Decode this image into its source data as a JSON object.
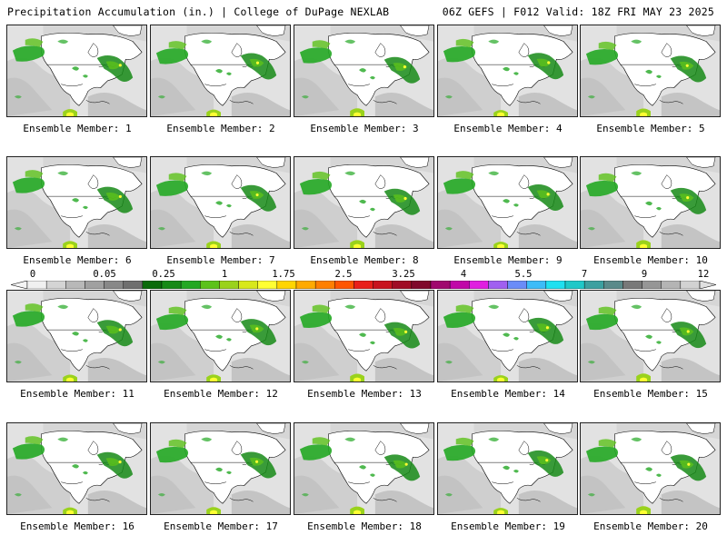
{
  "header": {
    "left_title": "Precipitation Accumulation (in.) | College of DuPage NEXLAB",
    "right_title": "06Z GEFS | F012 Valid: 18Z FRI MAY 23 2025"
  },
  "colorbar": {
    "tick_labels": [
      "0",
      "0.05",
      "0.25",
      "1",
      "1.75",
      "2.5",
      "3.25",
      "4",
      "5.5",
      "7",
      "9",
      "12"
    ],
    "colors": [
      "#f0f0f0",
      "#d4d4d4",
      "#b8b8b8",
      "#a0a0a0",
      "#888888",
      "#6f6f6f",
      "#0b6b0b",
      "#168a16",
      "#23a823",
      "#5cc21a",
      "#9ad21c",
      "#d8e81c",
      "#ffff33",
      "#ffd500",
      "#ffaa00",
      "#ff7f00",
      "#ff5500",
      "#e8201a",
      "#c8141e",
      "#a00c24",
      "#80082a",
      "#a0086e",
      "#c008a8",
      "#e020e0",
      "#a060f0",
      "#6a8cf8",
      "#3cbcf8",
      "#20e0f0",
      "#20c8c8",
      "#3ca0a0",
      "#5a8a8a",
      "#787878",
      "#969696",
      "#b4b4b4",
      "#d2d2d2"
    ]
  },
  "members": [
    {
      "label": "Ensemble Member: 1"
    },
    {
      "label": "Ensemble Member: 2"
    },
    {
      "label": "Ensemble Member: 3"
    },
    {
      "label": "Ensemble Member: 4"
    },
    {
      "label": "Ensemble Member: 5"
    },
    {
      "label": "Ensemble Member: 6"
    },
    {
      "label": "Ensemble Member: 7"
    },
    {
      "label": "Ensemble Member: 8"
    },
    {
      "label": "Ensemble Member: 9"
    },
    {
      "label": "Ensemble Member: 10"
    },
    {
      "label": "Ensemble Member: 11"
    },
    {
      "label": "Ensemble Member: 12"
    },
    {
      "label": "Ensemble Member: 13"
    },
    {
      "label": "Ensemble Member: 14"
    },
    {
      "label": "Ensemble Member: 15"
    },
    {
      "label": "Ensemble Member: 16"
    },
    {
      "label": "Ensemble Member: 17"
    },
    {
      "label": "Ensemble Member: 18"
    },
    {
      "label": "Ensemble Member: 19"
    },
    {
      "label": "Ensemble Member: 20"
    }
  ]
}
